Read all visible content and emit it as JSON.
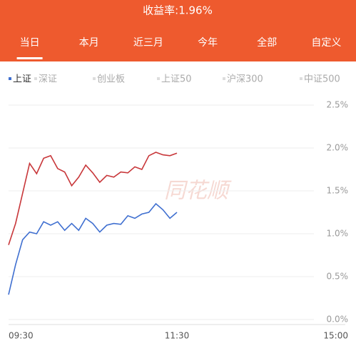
{
  "header": {
    "title": "收益率:1.96%",
    "tabs": [
      "当日",
      "本月",
      "近三月",
      "今年",
      "全部",
      "自定义"
    ],
    "selected_tab": 0
  },
  "chart_data": {
    "type": "line",
    "indices": [
      "上证",
      "深证",
      "创业板",
      "上证50",
      "沪深300",
      "中证500"
    ],
    "selected_index": 0,
    "watermark": "同花顺",
    "x": [
      0,
      5,
      10,
      15,
      20,
      25,
      30,
      35,
      40,
      45,
      50,
      55,
      60,
      65,
      70,
      75,
      80,
      85,
      90,
      95,
      100,
      105,
      110,
      115,
      120
    ],
    "series": [
      {
        "color": "#c8373a",
        "values": [
          0.87,
          1.12,
          1.47,
          1.82,
          1.7,
          1.88,
          1.91,
          1.76,
          1.72,
          1.56,
          1.66,
          1.8,
          1.71,
          1.6,
          1.68,
          1.66,
          1.72,
          1.71,
          1.78,
          1.75,
          1.91,
          1.95,
          1.92,
          1.91,
          1.94
        ]
      },
      {
        "color": "#3f6fd0",
        "values": [
          0.29,
          0.64,
          0.93,
          1.02,
          1.0,
          1.14,
          1.1,
          1.14,
          1.04,
          1.12,
          1.04,
          1.18,
          1.12,
          1.02,
          1.1,
          1.12,
          1.11,
          1.21,
          1.18,
          1.23,
          1.25,
          1.35,
          1.28,
          1.18,
          1.25
        ]
      }
    ],
    "xlim": [
      0,
      240
    ],
    "xticks": [
      {
        "value": 0,
        "label": "09:30"
      },
      {
        "value": 120,
        "label": "11:30"
      },
      {
        "value": 240,
        "label": "15:00"
      }
    ],
    "ylim": [
      0,
      2.5
    ],
    "yticks": [
      {
        "value": 0,
        "label": "0.0%"
      },
      {
        "value": 0.5,
        "label": "0.5%"
      },
      {
        "value": 1,
        "label": "1.0%"
      },
      {
        "value": 1.5,
        "label": "1.5%"
      },
      {
        "value": 2,
        "label": "2.0%"
      },
      {
        "value": 2.5,
        "label": "2.5%"
      }
    ],
    "grid": true
  }
}
